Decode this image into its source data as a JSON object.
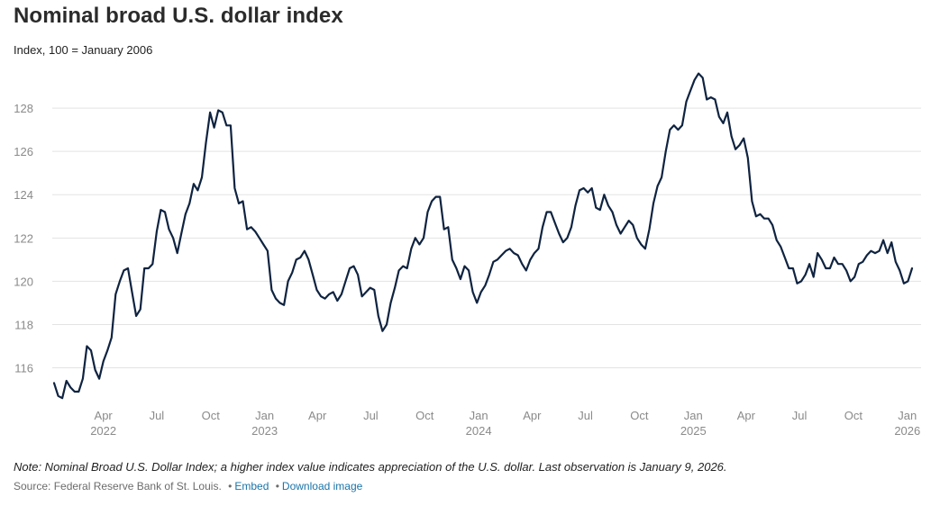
{
  "chart_data": {
    "type": "line",
    "title": "Nominal broad U.S. dollar index",
    "subtitle": "Index, 100 = January 2006",
    "ylim": [
      114.4,
      130.5
    ],
    "yticks": [
      116,
      118,
      120,
      122,
      124,
      126,
      128
    ],
    "grid": true,
    "x_range": [
      "2022-01-07",
      "2026-01-09"
    ],
    "xticks": [
      {
        "date": "2022-04-01",
        "label": "Apr",
        "year": "2022"
      },
      {
        "date": "2022-07-01",
        "label": "Jul",
        "year": ""
      },
      {
        "date": "2022-10-01",
        "label": "Oct",
        "year": ""
      },
      {
        "date": "2023-01-01",
        "label": "Jan",
        "year": "2023"
      },
      {
        "date": "2023-04-01",
        "label": "Apr",
        "year": ""
      },
      {
        "date": "2023-07-01",
        "label": "Jul",
        "year": ""
      },
      {
        "date": "2023-10-01",
        "label": "Oct",
        "year": ""
      },
      {
        "date": "2024-01-01",
        "label": "Jan",
        "year": "2024"
      },
      {
        "date": "2024-04-01",
        "label": "Apr",
        "year": ""
      },
      {
        "date": "2024-07-01",
        "label": "Jul",
        "year": ""
      },
      {
        "date": "2024-10-01",
        "label": "Oct",
        "year": ""
      },
      {
        "date": "2025-01-01",
        "label": "Jan",
        "year": "2025"
      },
      {
        "date": "2025-04-01",
        "label": "Apr",
        "year": ""
      },
      {
        "date": "2025-07-01",
        "label": "Jul",
        "year": ""
      },
      {
        "date": "2025-10-01",
        "label": "Oct",
        "year": ""
      },
      {
        "date": "2026-01-01",
        "label": "Jan",
        "year": "2026"
      }
    ],
    "series": [
      {
        "name": "Nominal broad U.S. dollar index",
        "color": "#0f2340",
        "points": [
          [
            "2022-01-07",
            115.3
          ],
          [
            "2022-01-14",
            114.7
          ],
          [
            "2022-01-21",
            114.6
          ],
          [
            "2022-01-28",
            115.4
          ],
          [
            "2022-02-04",
            115.1
          ],
          [
            "2022-02-11",
            114.9
          ],
          [
            "2022-02-18",
            114.9
          ],
          [
            "2022-02-25",
            115.5
          ],
          [
            "2022-03-04",
            117.0
          ],
          [
            "2022-03-11",
            116.8
          ],
          [
            "2022-03-18",
            115.9
          ],
          [
            "2022-03-25",
            115.5
          ],
          [
            "2022-04-01",
            116.3
          ],
          [
            "2022-04-08",
            116.8
          ],
          [
            "2022-04-15",
            117.4
          ],
          [
            "2022-04-22",
            119.4
          ],
          [
            "2022-04-29",
            120.0
          ],
          [
            "2022-05-06",
            120.5
          ],
          [
            "2022-05-13",
            120.6
          ],
          [
            "2022-05-20",
            119.5
          ],
          [
            "2022-05-27",
            118.4
          ],
          [
            "2022-06-03",
            118.7
          ],
          [
            "2022-06-10",
            120.6
          ],
          [
            "2022-06-17",
            120.6
          ],
          [
            "2022-06-24",
            120.8
          ],
          [
            "2022-07-01",
            122.3
          ],
          [
            "2022-07-08",
            123.3
          ],
          [
            "2022-07-15",
            123.2
          ],
          [
            "2022-07-22",
            122.4
          ],
          [
            "2022-07-29",
            122.0
          ],
          [
            "2022-08-05",
            121.3
          ],
          [
            "2022-08-12",
            122.2
          ],
          [
            "2022-08-19",
            123.1
          ],
          [
            "2022-08-26",
            123.6
          ],
          [
            "2022-09-02",
            124.5
          ],
          [
            "2022-09-09",
            124.2
          ],
          [
            "2022-09-16",
            124.8
          ],
          [
            "2022-09-23",
            126.4
          ],
          [
            "2022-09-30",
            127.8
          ],
          [
            "2022-10-07",
            127.1
          ],
          [
            "2022-10-14",
            127.9
          ],
          [
            "2022-10-21",
            127.8
          ],
          [
            "2022-10-28",
            127.2
          ],
          [
            "2022-11-04",
            127.2
          ],
          [
            "2022-11-11",
            124.3
          ],
          [
            "2022-11-18",
            123.6
          ],
          [
            "2022-11-25",
            123.7
          ],
          [
            "2022-12-02",
            122.4
          ],
          [
            "2022-12-09",
            122.5
          ],
          [
            "2022-12-16",
            122.3
          ],
          [
            "2022-12-23",
            122.0
          ],
          [
            "2022-12-30",
            121.7
          ],
          [
            "2023-01-06",
            121.4
          ],
          [
            "2023-01-13",
            119.6
          ],
          [
            "2023-01-20",
            119.2
          ],
          [
            "2023-01-27",
            119.0
          ],
          [
            "2023-02-03",
            118.9
          ],
          [
            "2023-02-10",
            120.0
          ],
          [
            "2023-02-17",
            120.4
          ],
          [
            "2023-02-24",
            121.0
          ],
          [
            "2023-03-03",
            121.1
          ],
          [
            "2023-03-10",
            121.4
          ],
          [
            "2023-03-17",
            121.0
          ],
          [
            "2023-03-24",
            120.3
          ],
          [
            "2023-03-31",
            119.6
          ],
          [
            "2023-04-07",
            119.3
          ],
          [
            "2023-04-14",
            119.2
          ],
          [
            "2023-04-21",
            119.4
          ],
          [
            "2023-04-28",
            119.5
          ],
          [
            "2023-05-05",
            119.1
          ],
          [
            "2023-05-12",
            119.4
          ],
          [
            "2023-05-19",
            120.0
          ],
          [
            "2023-05-26",
            120.6
          ],
          [
            "2023-06-02",
            120.7
          ],
          [
            "2023-06-09",
            120.3
          ],
          [
            "2023-06-16",
            119.3
          ],
          [
            "2023-06-23",
            119.5
          ],
          [
            "2023-06-30",
            119.7
          ],
          [
            "2023-07-07",
            119.6
          ],
          [
            "2023-07-14",
            118.4
          ],
          [
            "2023-07-21",
            117.7
          ],
          [
            "2023-07-28",
            118.0
          ],
          [
            "2023-08-04",
            119.0
          ],
          [
            "2023-08-11",
            119.7
          ],
          [
            "2023-08-18",
            120.5
          ],
          [
            "2023-08-25",
            120.7
          ],
          [
            "2023-09-01",
            120.6
          ],
          [
            "2023-09-08",
            121.5
          ],
          [
            "2023-09-15",
            122.0
          ],
          [
            "2023-09-22",
            121.7
          ],
          [
            "2023-09-29",
            122.0
          ],
          [
            "2023-10-06",
            123.2
          ],
          [
            "2023-10-13",
            123.7
          ],
          [
            "2023-10-20",
            123.9
          ],
          [
            "2023-10-27",
            123.9
          ],
          [
            "2023-11-03",
            122.4
          ],
          [
            "2023-11-10",
            122.5
          ],
          [
            "2023-11-17",
            121.0
          ],
          [
            "2023-11-24",
            120.6
          ],
          [
            "2023-12-01",
            120.1
          ],
          [
            "2023-12-08",
            120.7
          ],
          [
            "2023-12-15",
            120.5
          ],
          [
            "2023-12-22",
            119.5
          ],
          [
            "2023-12-29",
            119.0
          ],
          [
            "2024-01-05",
            119.5
          ],
          [
            "2024-01-12",
            119.8
          ],
          [
            "2024-01-19",
            120.3
          ],
          [
            "2024-01-26",
            120.9
          ],
          [
            "2024-02-02",
            121.0
          ],
          [
            "2024-02-09",
            121.2
          ],
          [
            "2024-02-16",
            121.4
          ],
          [
            "2024-02-23",
            121.5
          ],
          [
            "2024-03-01",
            121.3
          ],
          [
            "2024-03-08",
            121.2
          ],
          [
            "2024-03-15",
            120.8
          ],
          [
            "2024-03-22",
            120.5
          ],
          [
            "2024-03-29",
            121.0
          ],
          [
            "2024-04-05",
            121.3
          ],
          [
            "2024-04-12",
            121.5
          ],
          [
            "2024-04-19",
            122.5
          ],
          [
            "2024-04-26",
            123.2
          ],
          [
            "2024-05-03",
            123.2
          ],
          [
            "2024-05-10",
            122.7
          ],
          [
            "2024-05-17",
            122.2
          ],
          [
            "2024-05-24",
            121.8
          ],
          [
            "2024-05-31",
            122.0
          ],
          [
            "2024-06-07",
            122.5
          ],
          [
            "2024-06-14",
            123.5
          ],
          [
            "2024-06-21",
            124.2
          ],
          [
            "2024-06-28",
            124.3
          ],
          [
            "2024-07-05",
            124.1
          ],
          [
            "2024-07-12",
            124.3
          ],
          [
            "2024-07-19",
            123.4
          ],
          [
            "2024-07-26",
            123.3
          ],
          [
            "2024-08-02",
            124.0
          ],
          [
            "2024-08-09",
            123.5
          ],
          [
            "2024-08-16",
            123.2
          ],
          [
            "2024-08-23",
            122.6
          ],
          [
            "2024-08-30",
            122.2
          ],
          [
            "2024-09-06",
            122.5
          ],
          [
            "2024-09-13",
            122.8
          ],
          [
            "2024-09-20",
            122.6
          ],
          [
            "2024-09-27",
            122.0
          ],
          [
            "2024-10-04",
            121.7
          ],
          [
            "2024-10-11",
            121.5
          ],
          [
            "2024-10-18",
            122.4
          ],
          [
            "2024-10-25",
            123.6
          ],
          [
            "2024-11-01",
            124.4
          ],
          [
            "2024-11-08",
            124.8
          ],
          [
            "2024-11-15",
            126.0
          ],
          [
            "2024-11-22",
            127.0
          ],
          [
            "2024-11-29",
            127.2
          ],
          [
            "2024-12-06",
            127.0
          ],
          [
            "2024-12-13",
            127.2
          ],
          [
            "2024-12-20",
            128.3
          ],
          [
            "2024-12-27",
            128.8
          ],
          [
            "2025-01-03",
            129.3
          ],
          [
            "2025-01-10",
            129.6
          ],
          [
            "2025-01-17",
            129.4
          ],
          [
            "2025-01-24",
            128.4
          ],
          [
            "2025-01-31",
            128.5
          ],
          [
            "2025-02-07",
            128.4
          ],
          [
            "2025-02-14",
            127.6
          ],
          [
            "2025-02-21",
            127.3
          ],
          [
            "2025-02-28",
            127.8
          ],
          [
            "2025-03-07",
            126.7
          ],
          [
            "2025-03-14",
            126.1
          ],
          [
            "2025-03-21",
            126.3
          ],
          [
            "2025-03-28",
            126.6
          ],
          [
            "2025-04-04",
            125.7
          ],
          [
            "2025-04-11",
            123.7
          ],
          [
            "2025-04-18",
            123.0
          ],
          [
            "2025-04-25",
            123.1
          ],
          [
            "2025-05-02",
            122.9
          ],
          [
            "2025-05-09",
            122.9
          ],
          [
            "2025-05-16",
            122.6
          ],
          [
            "2025-05-23",
            121.9
          ],
          [
            "2025-05-30",
            121.6
          ],
          [
            "2025-06-06",
            121.1
          ],
          [
            "2025-06-13",
            120.6
          ],
          [
            "2025-06-20",
            120.6
          ],
          [
            "2025-06-27",
            119.9
          ],
          [
            "2025-07-04",
            120.0
          ],
          [
            "2025-07-11",
            120.3
          ],
          [
            "2025-07-18",
            120.8
          ],
          [
            "2025-07-25",
            120.2
          ],
          [
            "2025-08-01",
            121.3
          ],
          [
            "2025-08-08",
            121.0
          ],
          [
            "2025-08-15",
            120.6
          ],
          [
            "2025-08-22",
            120.6
          ],
          [
            "2025-08-29",
            121.1
          ],
          [
            "2025-09-05",
            120.8
          ],
          [
            "2025-09-12",
            120.8
          ],
          [
            "2025-09-19",
            120.5
          ],
          [
            "2025-09-26",
            120.0
          ],
          [
            "2025-10-03",
            120.2
          ],
          [
            "2025-10-10",
            120.8
          ],
          [
            "2025-10-17",
            120.9
          ],
          [
            "2025-10-24",
            121.2
          ],
          [
            "2025-10-31",
            121.4
          ],
          [
            "2025-11-07",
            121.3
          ],
          [
            "2025-11-14",
            121.4
          ],
          [
            "2025-11-21",
            121.9
          ],
          [
            "2025-11-28",
            121.3
          ],
          [
            "2025-12-05",
            121.8
          ],
          [
            "2025-12-12",
            120.9
          ],
          [
            "2025-12-19",
            120.5
          ],
          [
            "2025-12-26",
            119.9
          ],
          [
            "2026-01-02",
            120.0
          ],
          [
            "2026-01-09",
            120.6
          ]
        ]
      }
    ]
  },
  "note": "Note: Nominal Broad U.S. Dollar Index; a higher index value indicates appreciation of the U.S. dollar. Last observation is January 9, 2026.",
  "footer": {
    "source": "Source: Federal Reserve Bank of St. Louis.",
    "separator": "•",
    "embed_label": "Embed",
    "download_label": "Download image"
  },
  "colors": {
    "line": "#0f2340",
    "grid": "#e3e3e3",
    "tick_label": "#8a8a8a",
    "link": "#1a73a8"
  }
}
